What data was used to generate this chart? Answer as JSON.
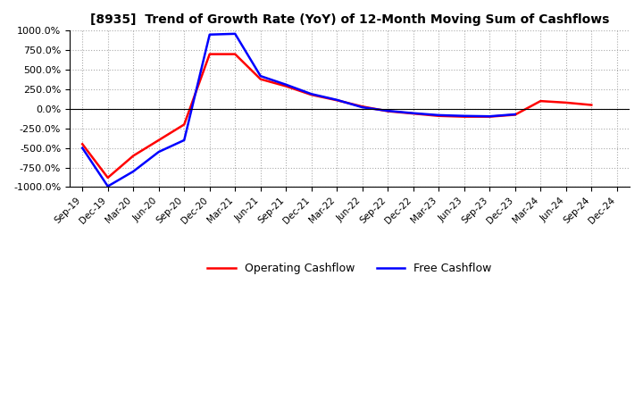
{
  "title": "[8935]  Trend of Growth Rate (YoY) of 12-Month Moving Sum of Cashflows",
  "title_fontsize": 10,
  "ylim": [
    -1000,
    1000
  ],
  "ytick_values": [
    -1000,
    -750,
    -500,
    -250,
    0,
    250,
    500,
    750,
    1000
  ],
  "xlabel_dates": [
    "Sep-19",
    "Dec-19",
    "Mar-20",
    "Jun-20",
    "Sep-20",
    "Dec-20",
    "Mar-21",
    "Jun-21",
    "Sep-21",
    "Dec-21",
    "Mar-22",
    "Jun-22",
    "Sep-22",
    "Dec-22",
    "Mar-23",
    "Jun-23",
    "Sep-23",
    "Dec-23",
    "Mar-24",
    "Jun-24",
    "Sep-24",
    "Dec-24"
  ],
  "operating_cashflow": [
    -450,
    -880,
    -600,
    -400,
    -200,
    700,
    700,
    380,
    290,
    180,
    110,
    30,
    -30,
    -60,
    -90,
    -100,
    -100,
    -75,
    100,
    80,
    50,
    null
  ],
  "free_cashflow": [
    -500,
    -990,
    -800,
    -550,
    -400,
    950,
    960,
    420,
    310,
    190,
    115,
    20,
    -25,
    -55,
    -80,
    -90,
    -95,
    -70,
    null,
    null,
    null,
    null
  ],
  "ocf_color": "#FF0000",
  "fcf_color": "#0000FF",
  "background_color": "#FFFFFF",
  "grid_color": "#AAAAAA",
  "legend_labels": [
    "Operating Cashflow",
    "Free Cashflow"
  ]
}
